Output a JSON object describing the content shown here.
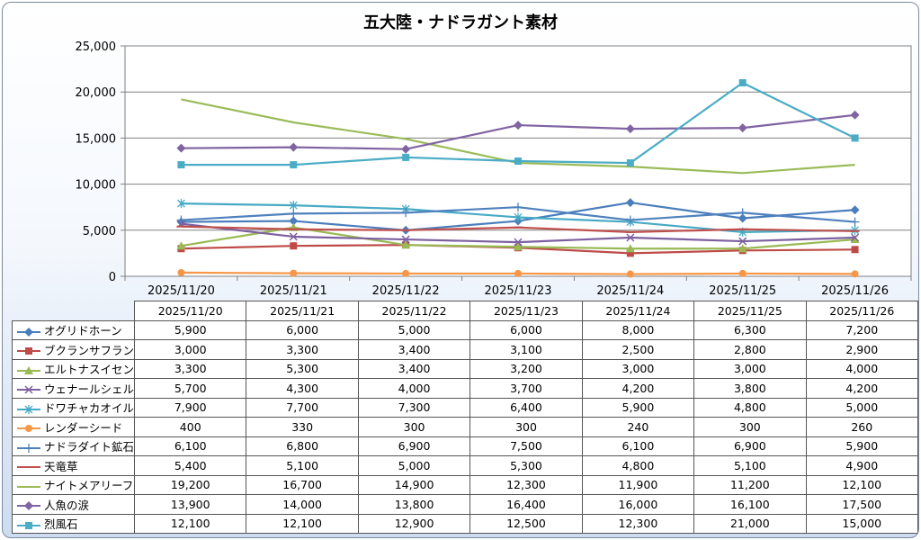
{
  "chart_data": {
    "type": "line",
    "title": "五大陸・ナドラガント素材",
    "x": [
      "2025/11/20",
      "2025/11/21",
      "2025/11/22",
      "2025/11/23",
      "2025/11/24",
      "2025/11/25",
      "2025/11/26"
    ],
    "ylim": [
      0,
      25000
    ],
    "yticks": [
      "0",
      "5,000",
      "10,000",
      "15,000",
      "20,000",
      "25,000"
    ],
    "grid": true,
    "legend": "data-table",
    "series": [
      {
        "name": "オグリドホーン",
        "color": "#4a7ebb",
        "marker": "diamond",
        "values": [
          5900,
          6000,
          5000,
          6000,
          8000,
          6300,
          7200
        ],
        "labels": [
          "5,900",
          "6,000",
          "5,000",
          "6,000",
          "8,000",
          "6,300",
          "7,200"
        ]
      },
      {
        "name": "ブクランサフラン",
        "color": "#be4b48",
        "marker": "square",
        "values": [
          3000,
          3300,
          3400,
          3100,
          2500,
          2800,
          2900
        ],
        "labels": [
          "3,000",
          "3,300",
          "3,400",
          "3,100",
          "2,500",
          "2,800",
          "2,900"
        ]
      },
      {
        "name": "エルトナスイセン",
        "color": "#98b954",
        "marker": "triangle",
        "values": [
          3300,
          5300,
          3400,
          3200,
          3000,
          3000,
          4000
        ],
        "labels": [
          "3,300",
          "5,300",
          "3,400",
          "3,200",
          "3,000",
          "3,000",
          "4,000"
        ]
      },
      {
        "name": "ウェナールシェル",
        "color": "#7d60a0",
        "marker": "x",
        "values": [
          5700,
          4300,
          4000,
          3700,
          4200,
          3800,
          4200
        ],
        "labels": [
          "5,700",
          "4,300",
          "4,000",
          "3,700",
          "4,200",
          "3,800",
          "4,200"
        ]
      },
      {
        "name": "ドワチャカオイル",
        "color": "#46aac5",
        "marker": "star",
        "values": [
          7900,
          7700,
          7300,
          6400,
          5900,
          4800,
          5000
        ],
        "labels": [
          "7,900",
          "7,700",
          "7,300",
          "6,400",
          "5,900",
          "4,800",
          "5,000"
        ]
      },
      {
        "name": "レンダーシード",
        "color": "#f79646",
        "marker": "circle",
        "values": [
          400,
          330,
          300,
          300,
          240,
          300,
          260
        ],
        "labels": [
          "400",
          "330",
          "300",
          "300",
          "240",
          "300",
          "260"
        ]
      },
      {
        "name": "ナドラダイト鉱石",
        "color": "#4f81bd",
        "marker": "plus",
        "values": [
          6100,
          6800,
          6900,
          7500,
          6100,
          6900,
          5900
        ],
        "labels": [
          "6,100",
          "6,800",
          "6,900",
          "7,500",
          "6,100",
          "6,900",
          "5,900"
        ]
      },
      {
        "name": "天竜草",
        "color": "#c0504d",
        "marker": "dash",
        "values": [
          5400,
          5100,
          5000,
          5300,
          4800,
          5100,
          4900
        ],
        "labels": [
          "5,400",
          "5,100",
          "5,000",
          "5,300",
          "4,800",
          "5,100",
          "4,900"
        ]
      },
      {
        "name": "ナイトメアリーフ",
        "color": "#9bbb59",
        "marker": "none",
        "values": [
          19200,
          16700,
          14900,
          12300,
          11900,
          11200,
          12100
        ],
        "labels": [
          "19,200",
          "16,700",
          "14,900",
          "12,300",
          "11,900",
          "11,200",
          "12,100"
        ]
      },
      {
        "name": "人魚の涙",
        "color": "#8064a2",
        "marker": "diamond",
        "values": [
          13900,
          14000,
          13800,
          16400,
          16000,
          16100,
          17500
        ],
        "labels": [
          "13,900",
          "14,000",
          "13,800",
          "16,400",
          "16,000",
          "16,100",
          "17,500"
        ]
      },
      {
        "name": "烈風石",
        "color": "#4bacc6",
        "marker": "square",
        "values": [
          12100,
          12100,
          12900,
          12500,
          12300,
          21000,
          15000
        ],
        "labels": [
          "12,100",
          "12,100",
          "12,900",
          "12,500",
          "12,300",
          "21,000",
          "15,000"
        ]
      }
    ]
  }
}
